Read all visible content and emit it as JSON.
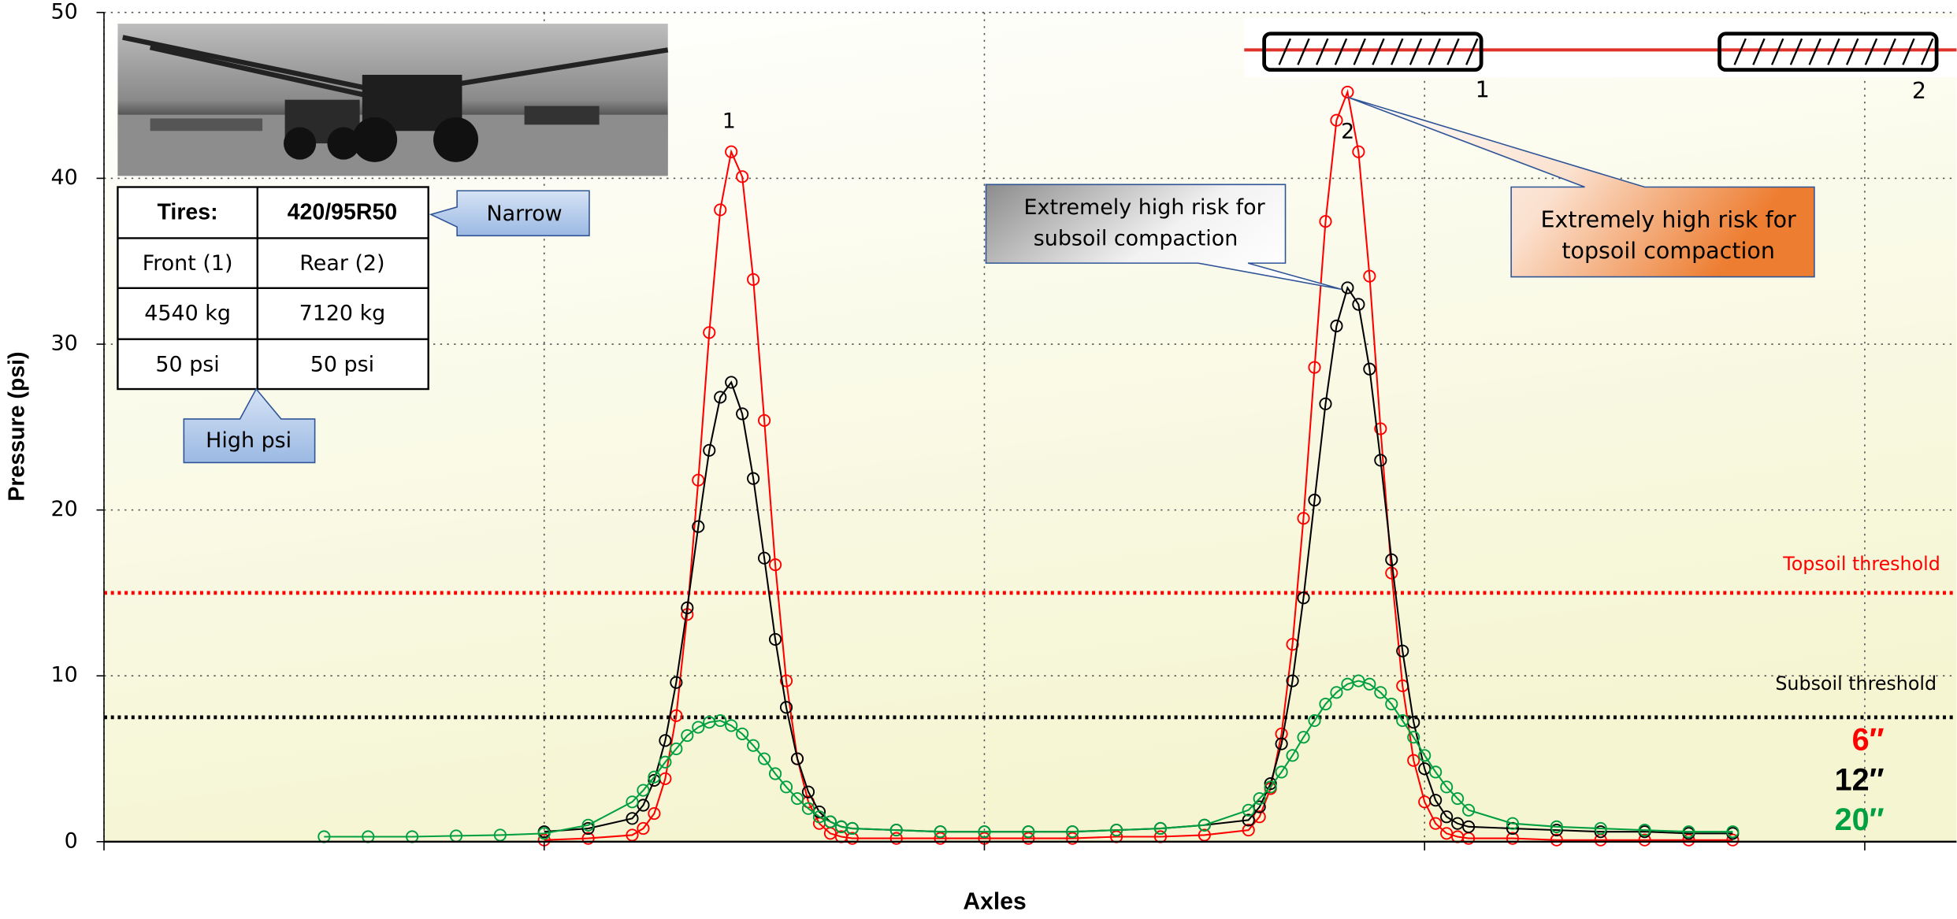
{
  "chart_data": {
    "type": "line",
    "ylabel": "Pressure (psi)",
    "xlabel": "Axles",
    "xlim": [
      0,
      4.2
    ],
    "xticks": [
      0,
      1,
      2,
      3,
      4
    ],
    "ylim": [
      0,
      50
    ],
    "yticks": [
      0,
      10,
      20,
      30,
      40,
      50
    ],
    "grid": true,
    "x": [
      0.5,
      0.6,
      0.7,
      0.8,
      0.9,
      1.0,
      1.1,
      1.2,
      1.225,
      1.25,
      1.275,
      1.3,
      1.325,
      1.35,
      1.375,
      1.4,
      1.425,
      1.45,
      1.475,
      1.5,
      1.525,
      1.55,
      1.575,
      1.6,
      1.625,
      1.65,
      1.675,
      1.7,
      1.8,
      1.9,
      2.0,
      2.1,
      2.2,
      2.3,
      2.4,
      2.5,
      2.6,
      2.625,
      2.65,
      2.675,
      2.7,
      2.725,
      2.75,
      2.775,
      2.8,
      2.825,
      2.85,
      2.875,
      2.9,
      2.925,
      2.95,
      2.975,
      3.0,
      3.025,
      3.05,
      3.075,
      3.1,
      3.2,
      3.3,
      3.4,
      3.5,
      3.6,
      3.7
    ],
    "series": [
      {
        "name": "6″",
        "color": "#ff0000",
        "values": [
          null,
          null,
          null,
          null,
          null,
          0.1,
          0.2,
          0.4,
          0.8,
          1.7,
          3.8,
          7.6,
          13.7,
          21.8,
          30.7,
          38.1,
          41.6,
          40.1,
          33.9,
          25.4,
          16.7,
          9.7,
          5.0,
          2.4,
          1.1,
          0.5,
          0.3,
          0.2,
          0.2,
          0.2,
          0.2,
          0.2,
          0.2,
          0.3,
          0.3,
          0.4,
          0.7,
          1.5,
          3.2,
          6.5,
          11.9,
          19.5,
          28.6,
          37.4,
          43.5,
          45.2,
          41.6,
          34.1,
          24.9,
          16.2,
          9.4,
          4.9,
          2.4,
          1.1,
          0.5,
          0.3,
          0.2,
          0.2,
          0.1,
          0.1,
          0.1,
          0.1,
          0.1
        ]
      },
      {
        "name": "12″",
        "color": "#000000",
        "values": [
          null,
          null,
          null,
          null,
          null,
          0.6,
          0.8,
          1.4,
          2.2,
          3.7,
          6.1,
          9.6,
          14.1,
          19.0,
          23.6,
          26.8,
          27.7,
          25.8,
          21.9,
          17.1,
          12.2,
          8.1,
          5.0,
          3.0,
          1.8,
          1.2,
          0.9,
          0.8,
          0.7,
          0.6,
          0.6,
          0.6,
          0.6,
          0.7,
          0.8,
          1.0,
          1.3,
          2.1,
          3.5,
          5.9,
          9.7,
          14.7,
          20.6,
          26.4,
          31.1,
          33.4,
          32.4,
          28.5,
          23.0,
          17.0,
          11.5,
          7.2,
          4.4,
          2.5,
          1.5,
          1.1,
          0.9,
          0.8,
          0.7,
          0.6,
          0.6,
          0.5,
          0.5
        ]
      },
      {
        "name": "20″",
        "color": "#00a040",
        "values": [
          0.3,
          0.3,
          0.3,
          0.35,
          0.4,
          0.5,
          1.0,
          2.4,
          3.1,
          3.9,
          4.8,
          5.6,
          6.4,
          6.9,
          7.2,
          7.3,
          7.0,
          6.5,
          5.8,
          5.0,
          4.1,
          3.3,
          2.6,
          2.0,
          1.5,
          1.2,
          0.9,
          0.8,
          0.7,
          0.6,
          0.6,
          0.6,
          0.6,
          0.7,
          0.8,
          1.0,
          1.9,
          2.6,
          3.3,
          4.2,
          5.2,
          6.3,
          7.3,
          8.3,
          9.0,
          9.5,
          9.7,
          9.5,
          9.0,
          8.3,
          7.3,
          6.3,
          5.2,
          4.2,
          3.3,
          2.6,
          1.9,
          1.1,
          0.9,
          0.8,
          0.7,
          0.6,
          0.6
        ]
      }
    ],
    "thresholds": [
      {
        "label": "Topsoil threshold",
        "value": 15,
        "color": "#ff0000"
      },
      {
        "label": "Subsoil threshold",
        "value": 7.5,
        "color": "#000000"
      }
    ],
    "peak_labels": [
      "1",
      "2"
    ],
    "diagram_labels": [
      "1",
      "2"
    ],
    "table": {
      "rows": [
        [
          "Tires:",
          "420/95R50"
        ],
        [
          "Front (1)",
          "Rear (2)"
        ],
        [
          "4540 kg",
          "7120 kg"
        ],
        [
          "50 psi",
          "50 psi"
        ]
      ]
    },
    "callouts": [
      {
        "lines": [
          "Narrow"
        ]
      },
      {
        "lines": [
          "High psi"
        ]
      },
      {
        "lines": [
          "Extremely high risk for",
          "subsoil compaction"
        ]
      },
      {
        "lines": [
          "Extremely high risk for",
          "topsoil compaction"
        ]
      }
    ]
  }
}
